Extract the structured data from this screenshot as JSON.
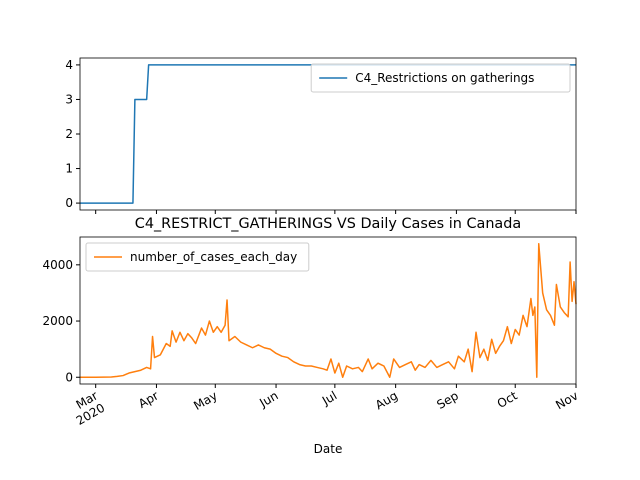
{
  "chart_data": [
    {
      "type": "line",
      "xlim": [
        "2020-02-22",
        "2020-11-01"
      ],
      "xticks": [
        "2020-03-01",
        "2020-04-01",
        "2020-05-01",
        "2020-06-01",
        "2020-07-01",
        "2020-08-01",
        "2020-09-01",
        "2020-10-01",
        "2020-11-01"
      ],
      "xtick_labels": false,
      "ylim": [
        -0.2,
        4.2
      ],
      "yticks": [
        0,
        1,
        2,
        3,
        4
      ],
      "legend": "upper right",
      "x": [
        "2020-02-22",
        "2020-03-20",
        "2020-03-21",
        "2020-03-27",
        "2020-03-28",
        "2020-11-01"
      ],
      "series": [
        {
          "name": "C4_Restrictions on gatherings",
          "color": "#1f77b4",
          "values": [
            0,
            0,
            3,
            3,
            4,
            4
          ]
        }
      ]
    },
    {
      "type": "line",
      "title": "C4_RESTRICT_GATHERINGS VS Daily Cases in Canada",
      "xlabel": "Date",
      "xlim": [
        "2020-02-22",
        "2020-11-01"
      ],
      "xticks": [
        {
          "value": "2020-03-01",
          "label": "Mar",
          "sublabel": "2020"
        },
        {
          "value": "2020-04-01",
          "label": "Apr"
        },
        {
          "value": "2020-05-01",
          "label": "May"
        },
        {
          "value": "2020-06-01",
          "label": "Jun"
        },
        {
          "value": "2020-07-01",
          "label": "Jul"
        },
        {
          "value": "2020-08-01",
          "label": "Aug"
        },
        {
          "value": "2020-09-01",
          "label": "Sep"
        },
        {
          "value": "2020-10-01",
          "label": "Oct"
        },
        {
          "value": "2020-11-01",
          "label": "Nov"
        }
      ],
      "xtick_labels": true,
      "ylim": [
        -240,
        4990
      ],
      "yticks": [
        0,
        2000,
        4000
      ],
      "legend": "upper left",
      "x": [
        "2020-02-22",
        "2020-02-26",
        "2020-03-01",
        "2020-03-05",
        "2020-03-09",
        "2020-03-12",
        "2020-03-15",
        "2020-03-18",
        "2020-03-21",
        "2020-03-24",
        "2020-03-27",
        "2020-03-29",
        "2020-03-30",
        "2020-03-31",
        "2020-04-03",
        "2020-04-06",
        "2020-04-08",
        "2020-04-09",
        "2020-04-11",
        "2020-04-13",
        "2020-04-15",
        "2020-04-17",
        "2020-04-19",
        "2020-04-21",
        "2020-04-24",
        "2020-04-26",
        "2020-04-28",
        "2020-04-30",
        "2020-05-02",
        "2020-05-04",
        "2020-05-06",
        "2020-05-07",
        "2020-05-08",
        "2020-05-11",
        "2020-05-14",
        "2020-05-17",
        "2020-05-20",
        "2020-05-23",
        "2020-05-26",
        "2020-05-29",
        "2020-06-01",
        "2020-06-04",
        "2020-06-07",
        "2020-06-10",
        "2020-06-13",
        "2020-06-16",
        "2020-06-19",
        "2020-06-22",
        "2020-06-25",
        "2020-06-27",
        "2020-06-29",
        "2020-07-01",
        "2020-07-03",
        "2020-07-05",
        "2020-07-07",
        "2020-07-10",
        "2020-07-13",
        "2020-07-15",
        "2020-07-18",
        "2020-07-20",
        "2020-07-23",
        "2020-07-26",
        "2020-07-29",
        "2020-07-31",
        "2020-08-03",
        "2020-08-06",
        "2020-08-09",
        "2020-08-11",
        "2020-08-13",
        "2020-08-16",
        "2020-08-19",
        "2020-08-22",
        "2020-08-25",
        "2020-08-28",
        "2020-08-31",
        "2020-09-02",
        "2020-09-05",
        "2020-09-07",
        "2020-09-09",
        "2020-09-11",
        "2020-09-13",
        "2020-09-15",
        "2020-09-17",
        "2020-09-19",
        "2020-09-21",
        "2020-09-23",
        "2020-09-25",
        "2020-09-27",
        "2020-09-29",
        "2020-10-01",
        "2020-10-03",
        "2020-10-05",
        "2020-10-07",
        "2020-10-09",
        "2020-10-10",
        "2020-10-11",
        "2020-10-12",
        "2020-10-13",
        "2020-10-15",
        "2020-10-17",
        "2020-10-19",
        "2020-10-21",
        "2020-10-22",
        "2020-10-24",
        "2020-10-26",
        "2020-10-28",
        "2020-10-29",
        "2020-10-30",
        "2020-10-31",
        "2020-11-01"
      ],
      "series": [
        {
          "name": "number_of_cases_each_day",
          "color": "#ff7f0e",
          "values": [
            0,
            0,
            0,
            5,
            10,
            30,
            60,
            150,
            200,
            250,
            350,
            300,
            1450,
            700,
            800,
            1200,
            1100,
            1650,
            1250,
            1600,
            1300,
            1550,
            1400,
            1200,
            1750,
            1500,
            2000,
            1600,
            1800,
            1600,
            1850,
            2750,
            1300,
            1450,
            1250,
            1150,
            1050,
            1150,
            1050,
            1000,
            850,
            750,
            700,
            550,
            450,
            400,
            400,
            350,
            300,
            250,
            650,
            150,
            500,
            0,
            400,
            300,
            350,
            200,
            650,
            300,
            500,
            400,
            0,
            650,
            350,
            450,
            550,
            250,
            450,
            350,
            600,
            350,
            450,
            550,
            300,
            750,
            550,
            1000,
            200,
            1600,
            700,
            1000,
            600,
            1350,
            850,
            1100,
            1300,
            1800,
            1200,
            1700,
            1500,
            2200,
            1800,
            2800,
            2200,
            2500,
            0,
            4750,
            3000,
            2400,
            2200,
            1850,
            3300,
            2500,
            2300,
            2150,
            4100,
            2700,
            3400,
            2600
          ]
        }
      ]
    }
  ]
}
